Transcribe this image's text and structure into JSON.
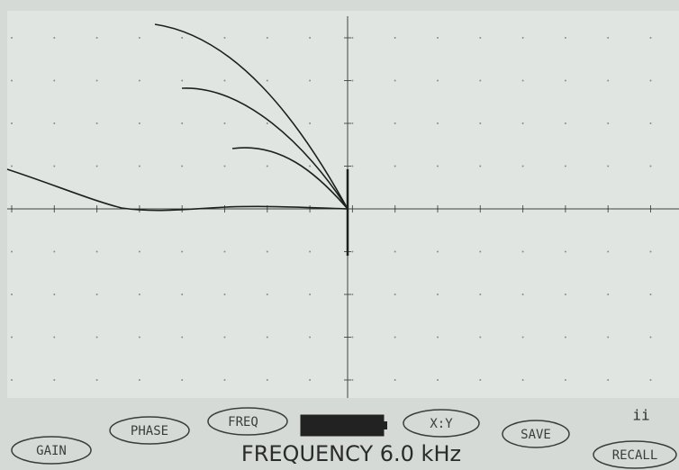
{
  "buttons": {
    "gain": "GAIN",
    "phase": "PHASE",
    "freq": "FREQ",
    "xy": "X:Y",
    "save": "SAVE",
    "recall": "RECALL"
  },
  "status": {
    "readout": "FREQUENCY 6.0 kHz",
    "indicator": "ii"
  }
}
